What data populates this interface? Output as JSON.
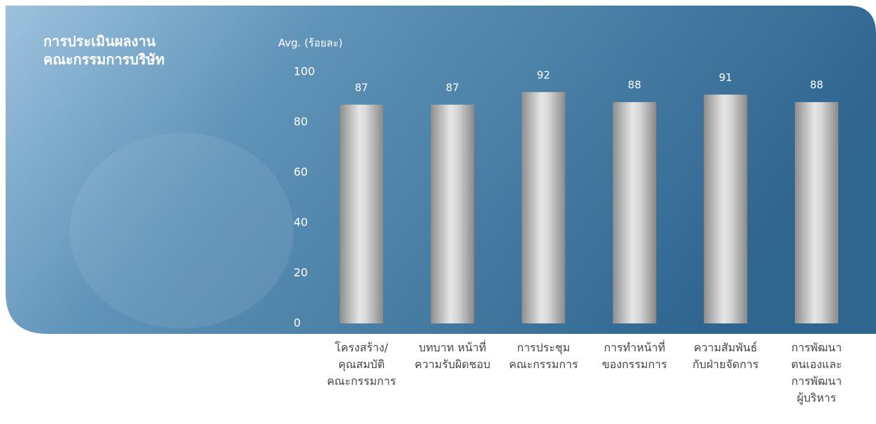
{
  "chart_data": {
    "type": "bar",
    "title": "การประเมินผลงาน\nคณะกรรมการบริษัท",
    "y_label": "Avg. (ร้อยละ)",
    "categories": [
      "โครงสร้าง/\nคุณสมบัติ\nคณะกรรมการ",
      "บทบาท หน้าที่\nความรับผิดชอบ",
      "การประชุม\nคณะกรรมการ",
      "การทำหน้าที่\nของกรรมการ",
      "ความสัมพันธ์\nกับฝ่ายจัดการ",
      "การพัฒนา\nตนเองและ\nการพัฒนา\nผู้บริหาร"
    ],
    "values": [
      87,
      87,
      92,
      88,
      91,
      88
    ],
    "ylim": [
      0,
      100
    ],
    "yticks": [
      0,
      20,
      40,
      60,
      80,
      100
    ],
    "grid": false
  }
}
